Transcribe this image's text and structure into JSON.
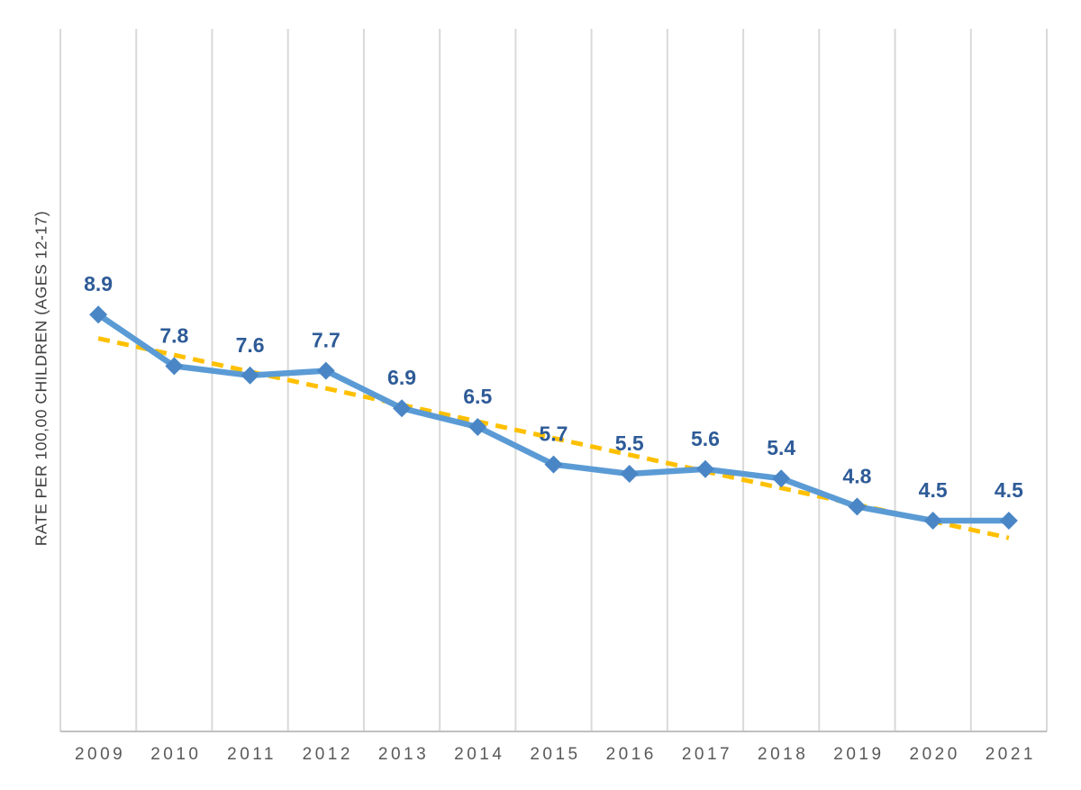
{
  "chart_data": {
    "type": "line",
    "title": "",
    "xlabel": "",
    "ylabel": "RATE PER 100,00 CHILDREN (AGES 12-17)",
    "categories": [
      "2009",
      "2010",
      "2011",
      "2012",
      "2013",
      "2014",
      "2015",
      "2016",
      "2017",
      "2018",
      "2019",
      "2020",
      "2021"
    ],
    "series": [
      {
        "values": [
          8.9,
          7.8,
          7.6,
          7.7,
          6.9,
          6.5,
          5.7,
          5.5,
          5.6,
          5.4,
          4.8,
          4.5,
          4.5
        ],
        "line_color": "#5B9BD5",
        "marker": "diamond",
        "marker_color": "#4A86C5",
        "data_labels": [
          "8.9",
          "7.8",
          "7.6",
          "7.7",
          "6.9",
          "6.5",
          "5.7",
          "5.5",
          "5.6",
          "5.4",
          "4.8",
          "4.5",
          "4.5"
        ],
        "data_label_color": "#2E5B97"
      }
    ],
    "trendline": {
      "type": "linear",
      "style": "dashed",
      "color": "#FFC000"
    },
    "ylim": [
      0,
      15
    ],
    "grid": "vertical-only",
    "gridline_color": "#D9D9D9",
    "axis_line_color": "#C0C0C0",
    "tick_label_color": "#595959",
    "legend": "none"
  }
}
